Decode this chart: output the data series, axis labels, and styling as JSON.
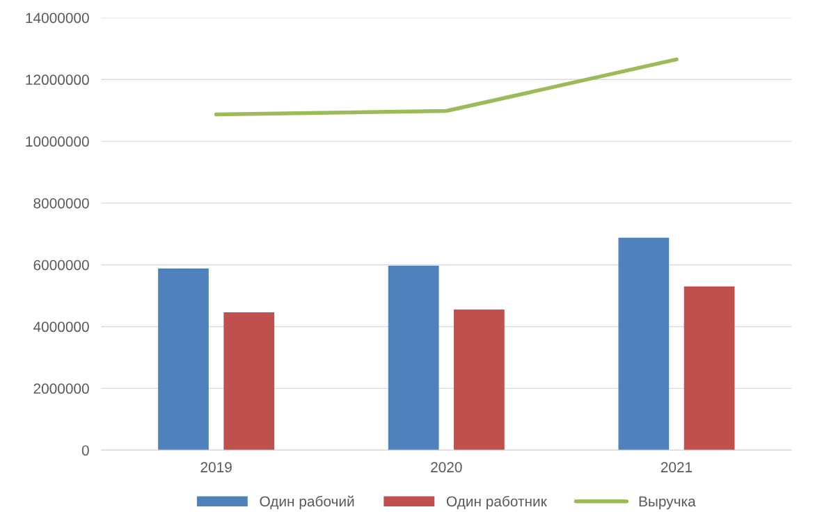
{
  "chart_data": {
    "type": "bar",
    "categories": [
      "2019",
      "2020",
      "2021"
    ],
    "series": [
      {
        "name": "Один рабочий",
        "color": "#4f81bd",
        "values": [
          5880000,
          5970000,
          6880000
        ]
      },
      {
        "name": "Один работник",
        "color": "#c0504d",
        "values": [
          4460000,
          4550000,
          5300000
        ]
      },
      {
        "name": "Выручка",
        "type": "line",
        "color": "#9bbb59",
        "values": [
          10870000,
          10980000,
          12650000
        ]
      }
    ],
    "ylim": [
      0,
      14000000
    ],
    "yticks": [
      0,
      2000000,
      4000000,
      6000000,
      8000000,
      10000000,
      12000000,
      14000000
    ],
    "grid": "y",
    "legend": "bottom"
  }
}
